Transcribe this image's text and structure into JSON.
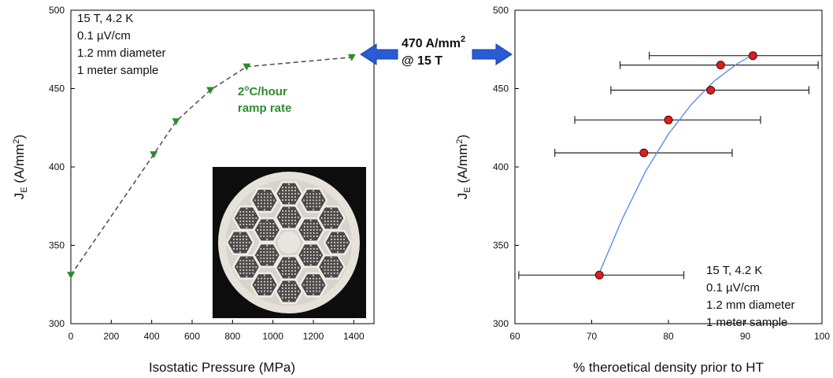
{
  "chart_data": [
    {
      "type": "line",
      "xlabel": "Isostatic Pressure (MPa)",
      "ylabel_main": "J",
      "ylabel_sub": "E",
      "ylabel_rest": " (A/mm",
      "ylabel_sup": "2",
      "ylabel_end": ")",
      "xlim": [
        0,
        1500
      ],
      "ylim": [
        300,
        500
      ],
      "xticks": [
        "0",
        "200",
        "400",
        "600",
        "800",
        "1000",
        "1200",
        "1400"
      ],
      "yticks": [
        "300",
        "350",
        "400",
        "450",
        "500"
      ],
      "series": [
        {
          "x": [
            0,
            410,
            520,
            690,
            870,
            1390
          ],
          "y": [
            331,
            408,
            429,
            449,
            464,
            470
          ]
        }
      ],
      "annotation_lines": [
        "15 T, 4.2 K",
        "0.1 µV/cm",
        "1.2 mm diameter",
        "1 meter sample"
      ],
      "ramp_rate_value": "2",
      "ramp_rate_sup": "o",
      "ramp_rate_unit": "C/hour",
      "ramp_rate_line2": "ramp rate",
      "marker_color": "#2e8b2e",
      "line_color": "#555555"
    },
    {
      "type": "scatter",
      "xlabel": "% theroetical density prior to HT",
      "ylabel_main": "J",
      "ylabel_sub": "E",
      "ylabel_rest": " (A/mm",
      "ylabel_sup": "2",
      "ylabel_end": ")",
      "xlim": [
        60,
        100
      ],
      "ylim": [
        300,
        500
      ],
      "xticks": [
        "60",
        "70",
        "80",
        "90",
        "100"
      ],
      "yticks": [
        "300",
        "350",
        "400",
        "450",
        "500"
      ],
      "points": [
        {
          "x": 71.0,
          "y": 331,
          "xerr_low": 60.5,
          "xerr_high": 82.0
        },
        {
          "x": 76.8,
          "y": 409,
          "xerr_low": 65.2,
          "xerr_high": 88.3
        },
        {
          "x": 80.0,
          "y": 430,
          "xerr_low": 67.8,
          "xerr_high": 92.0
        },
        {
          "x": 85.5,
          "y": 449,
          "xerr_low": 72.5,
          "xerr_high": 98.3
        },
        {
          "x": 86.8,
          "y": 465,
          "xerr_low": 73.7,
          "xerr_high": 99.5
        },
        {
          "x": 91.0,
          "y": 471,
          "xerr_low": 77.5,
          "xerr_high": 100.0
        }
      ],
      "fit_curve": [
        {
          "x": 70.7,
          "y": 329
        },
        {
          "x": 74.0,
          "y": 367
        },
        {
          "x": 77.0,
          "y": 397
        },
        {
          "x": 80.0,
          "y": 421
        },
        {
          "x": 83.0,
          "y": 440
        },
        {
          "x": 86.0,
          "y": 455
        },
        {
          "x": 89.0,
          "y": 466
        },
        {
          "x": 91.5,
          "y": 473
        }
      ],
      "annotation_lines": [
        "15 T, 4.2 K",
        "0.1 µV/cm",
        "1.2 mm diameter",
        "1 meter sample"
      ],
      "marker_color": "#d92020",
      "curve_color": "#5b8ff0"
    }
  ],
  "callout": {
    "value_line": "470 A/mm",
    "value_sup": "2",
    "field_line": "@ 15 T",
    "arrow_color": "#2a5bd7"
  },
  "inset": {
    "image_icon": "wire-cross-section-photo"
  }
}
